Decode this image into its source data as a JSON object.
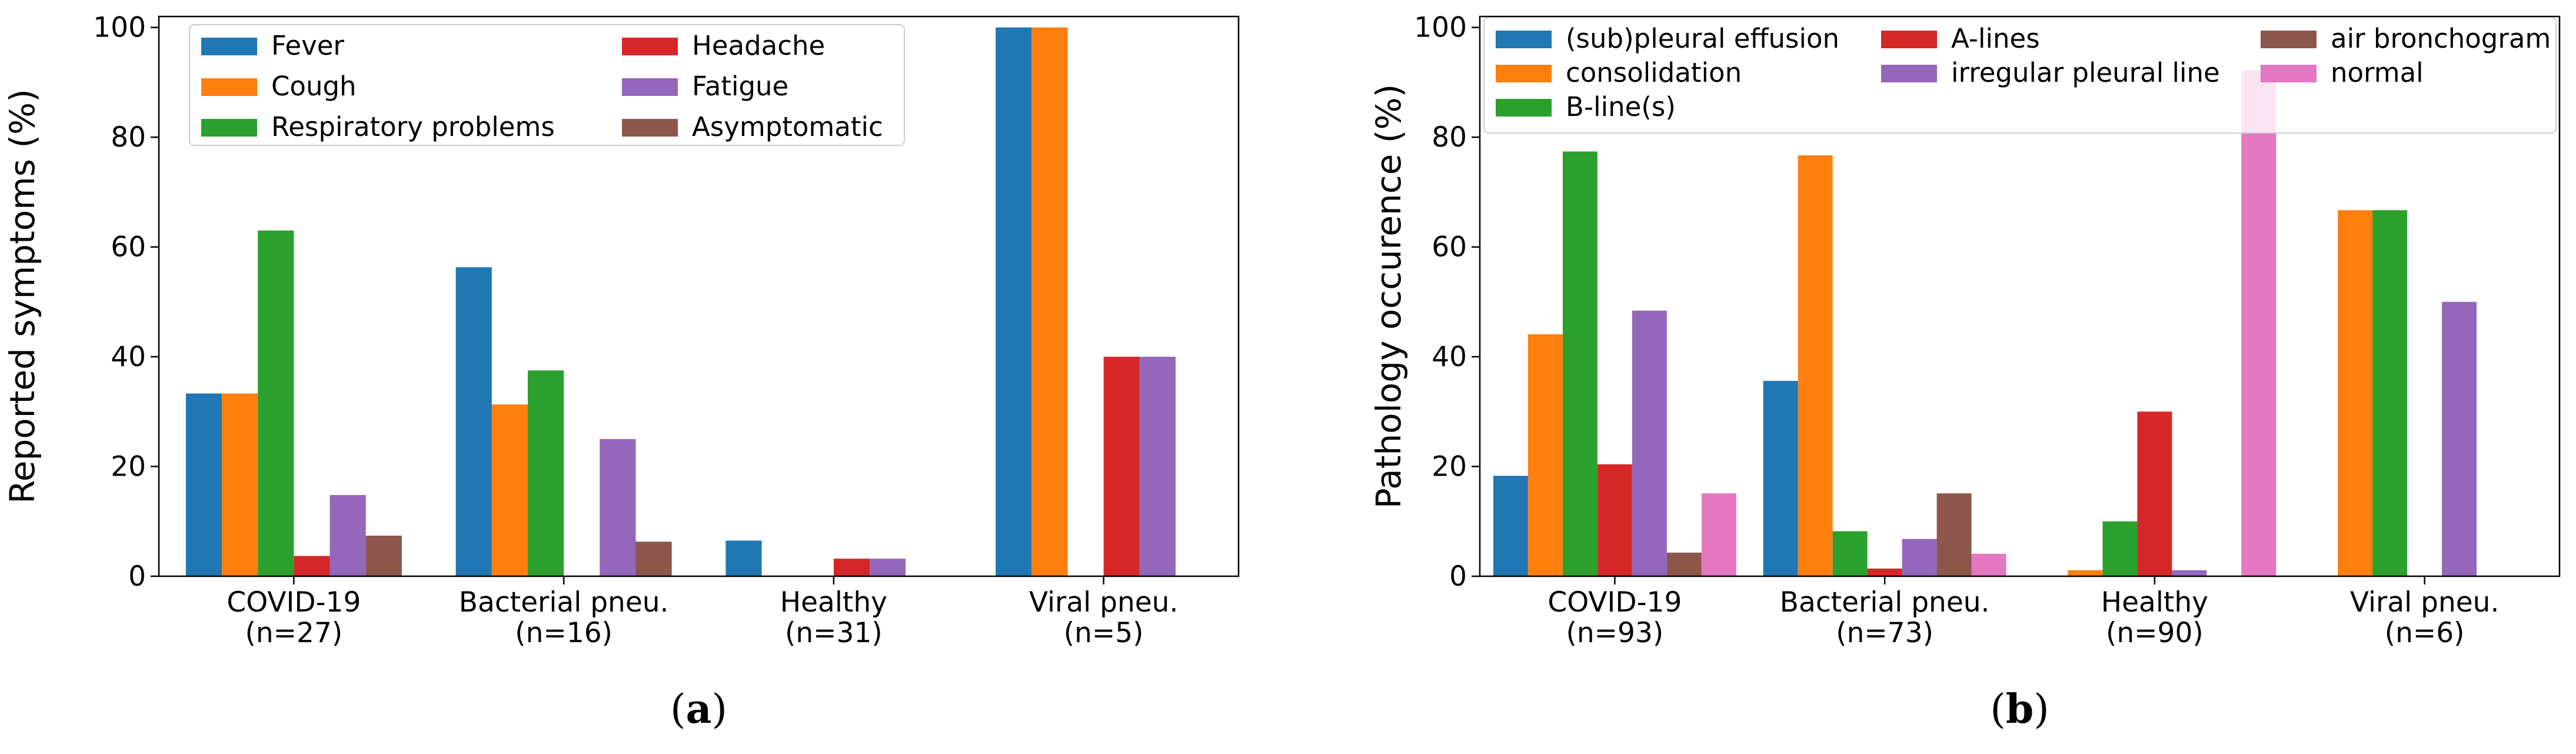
{
  "chart_data": [
    {
      "type": "bar",
      "caption_open": "(",
      "caption_letter": "a",
      "caption_close": ")",
      "xlabel": "",
      "ylabel": "Reported symptoms (%)",
      "ylim": [
        0,
        102
      ],
      "yticks": [
        "0",
        "20",
        "40",
        "60",
        "80",
        "100"
      ],
      "categories": [
        {
          "name": "COVID-19",
          "n": "(n=27)"
        },
        {
          "name": "Bacterial pneu.",
          "n": "(n=16)"
        },
        {
          "name": "Healthy",
          "n": "(n=31)"
        },
        {
          "name": "Viral pneu.",
          "n": "(n=5)"
        }
      ],
      "legend_position": "top-center",
      "series": [
        {
          "name": "Fever",
          "color": "#1f77b4",
          "values": [
            33.3,
            56.3,
            6.5,
            100
          ]
        },
        {
          "name": "Cough",
          "color": "#ff7f0e",
          "values": [
            33.3,
            31.3,
            0,
            100
          ]
        },
        {
          "name": "Respiratory problems",
          "color": "#2ca02c",
          "values": [
            63.0,
            37.5,
            0,
            0
          ]
        },
        {
          "name": "Headache",
          "color": "#d62728",
          "values": [
            3.7,
            0,
            3.2,
            40
          ]
        },
        {
          "name": "Fatigue",
          "color": "#9467bd",
          "values": [
            14.8,
            25.0,
            3.2,
            40
          ]
        },
        {
          "name": "Asymptomatic",
          "color": "#8c564b",
          "values": [
            7.4,
            6.3,
            0,
            0
          ]
        }
      ]
    },
    {
      "type": "bar",
      "caption_open": "(",
      "caption_letter": "b",
      "caption_close": ")",
      "xlabel": "",
      "ylabel": "Pathology occurence (%)",
      "ylim": [
        0,
        102
      ],
      "yticks": [
        "0",
        "20",
        "40",
        "60",
        "80",
        "100"
      ],
      "categories": [
        {
          "name": "COVID-19",
          "n": "(n=93)"
        },
        {
          "name": "Bacterial pneu.",
          "n": "(n=73)"
        },
        {
          "name": "Healthy",
          "n": "(n=90)"
        },
        {
          "name": "Viral pneu.",
          "n": "(n=6)"
        }
      ],
      "legend_position": "top",
      "series": [
        {
          "name": "(sub)pleural effusion",
          "color": "#1f77b4",
          "values": [
            18.3,
            35.6,
            0,
            0
          ]
        },
        {
          "name": "consolidation",
          "color": "#ff7f0e",
          "values": [
            44.1,
            76.7,
            1.1,
            66.7
          ]
        },
        {
          "name": "B-line(s)",
          "color": "#2ca02c",
          "values": [
            77.4,
            8.2,
            10.0,
            66.7
          ]
        },
        {
          "name": "A-lines",
          "color": "#d62728",
          "values": [
            20.4,
            1.4,
            30.0,
            0
          ]
        },
        {
          "name": "irregular pleural line",
          "color": "#9467bd",
          "values": [
            48.4,
            6.8,
            1.1,
            50.0
          ]
        },
        {
          "name": "air bronchogram",
          "color": "#8c564b",
          "values": [
            4.3,
            15.1,
            0,
            0
          ]
        },
        {
          "name": "normal",
          "color": "#e377c2",
          "values": [
            15.1,
            4.1,
            92.2,
            0
          ]
        }
      ]
    }
  ]
}
